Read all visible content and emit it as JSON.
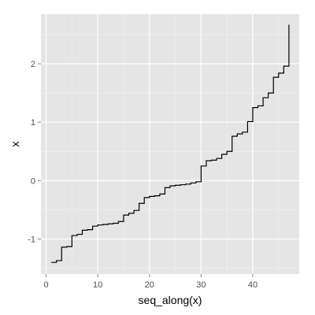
{
  "chart_data": {
    "type": "line",
    "subtype": "step",
    "title": "",
    "xlabel": "seq_along(x)",
    "ylabel": "x",
    "xlim": [
      -1,
      49
    ],
    "ylim": [
      -1.6,
      2.85
    ],
    "x_ticks": [
      0,
      10,
      20,
      30,
      40
    ],
    "y_ticks": [
      -1,
      0,
      1,
      2
    ],
    "x_tick_labels": [
      "0",
      "10",
      "20",
      "30",
      "40"
    ],
    "y_tick_labels": [
      "-1",
      "0",
      "1",
      "2"
    ],
    "grid": true,
    "legend": "none",
    "colors": {
      "panel_bg": "#e5e5e5",
      "grid_major": "#ffffff",
      "grid_minor": "#f2f2f2",
      "line": "#000000",
      "tick_label": "#4d4d4d"
    },
    "series": [
      {
        "x": [
          1,
          2,
          3,
          4,
          5,
          6,
          7,
          8,
          9,
          10,
          11,
          12,
          13,
          14,
          15,
          16,
          17,
          18,
          19,
          20,
          21,
          22,
          23,
          24,
          25,
          26,
          27,
          28,
          29,
          30,
          31,
          32,
          33,
          34,
          35,
          36,
          37,
          38,
          39,
          40,
          41,
          42,
          43,
          44,
          45,
          46,
          47
        ],
        "values": [
          -1.4,
          -1.37,
          -1.14,
          -1.13,
          -0.94,
          -0.92,
          -0.85,
          -0.84,
          -0.78,
          -0.76,
          -0.75,
          -0.74,
          -0.73,
          -0.7,
          -0.59,
          -0.56,
          -0.51,
          -0.39,
          -0.29,
          -0.27,
          -0.26,
          -0.23,
          -0.12,
          -0.09,
          -0.08,
          -0.07,
          -0.06,
          -0.04,
          -0.02,
          0.25,
          0.34,
          0.35,
          0.38,
          0.45,
          0.5,
          0.76,
          0.8,
          0.83,
          1.01,
          1.25,
          1.28,
          1.42,
          1.5,
          1.77,
          1.84,
          1.96,
          2.67
        ]
      }
    ]
  }
}
